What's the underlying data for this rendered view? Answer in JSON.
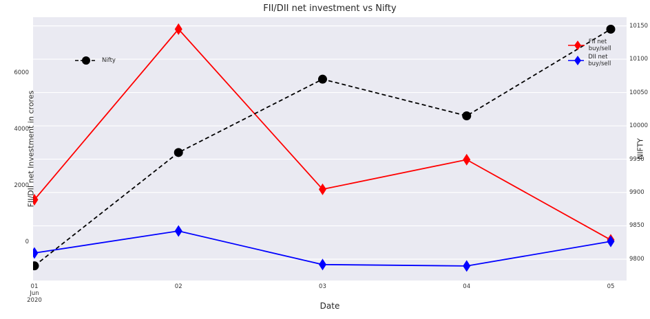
{
  "title": "FII/DII net investment vs Nifty",
  "xlabel": "Date",
  "ylabel_left": "FII/DII net Investment in crores",
  "ylabel_right": "NIFTY",
  "colors": {
    "fii": "#ff0000",
    "dii": "#0000ff",
    "nifty": "#000000",
    "plot_bg": "#eaeaf2",
    "grid": "#ffffff",
    "text": "#262626"
  },
  "legend_right": {
    "fii_label": "FII net buy/sell",
    "dii_label": "DII net buy/sell"
  },
  "legend_nifty": {
    "nifty_label": "Nifty"
  },
  "chart_data": {
    "type": "line",
    "title": "FII/DII net investment vs Nifty",
    "xlabel": "Date",
    "ylabel_left": "FII/DII net Investment in crores",
    "ylabel_right": "NIFTY",
    "x_tick_labels": [
      "01\nJun\n2020",
      "02",
      "03",
      "04",
      "05"
    ],
    "x_days": [
      1,
      2,
      3,
      4,
      5
    ],
    "series": [
      {
        "name": "FII net buy/sell",
        "axis": "left",
        "color": "#ff0000",
        "marker": "diamond",
        "line_style": "solid",
        "values": [
          1500,
          7550,
          1870,
          2920,
          75
        ]
      },
      {
        "name": "DII net buy/sell",
        "axis": "left",
        "color": "#0000ff",
        "marker": "diamond",
        "line_style": "solid",
        "values": [
          -390,
          390,
          -800,
          -850,
          20
        ]
      },
      {
        "name": "Nifty",
        "axis": "right",
        "color": "#000000",
        "marker": "circle",
        "line_style": "dashed",
        "values": [
          9790,
          9960,
          10070,
          10015,
          10145
        ]
      }
    ],
    "left_axis": {
      "ticks": [
        0,
        2000,
        4000,
        6000
      ],
      "range": [
        -1366,
        7975
      ]
    },
    "right_axis": {
      "ticks": [
        9800,
        9850,
        9900,
        9950,
        10000,
        10050,
        10100,
        10150
      ],
      "range": [
        9768,
        10163
      ]
    },
    "grid": "horizontal-on-right-axis-ticks",
    "legend_positions": {
      "fii_dii": "upper right",
      "nifty": "upper left"
    }
  }
}
